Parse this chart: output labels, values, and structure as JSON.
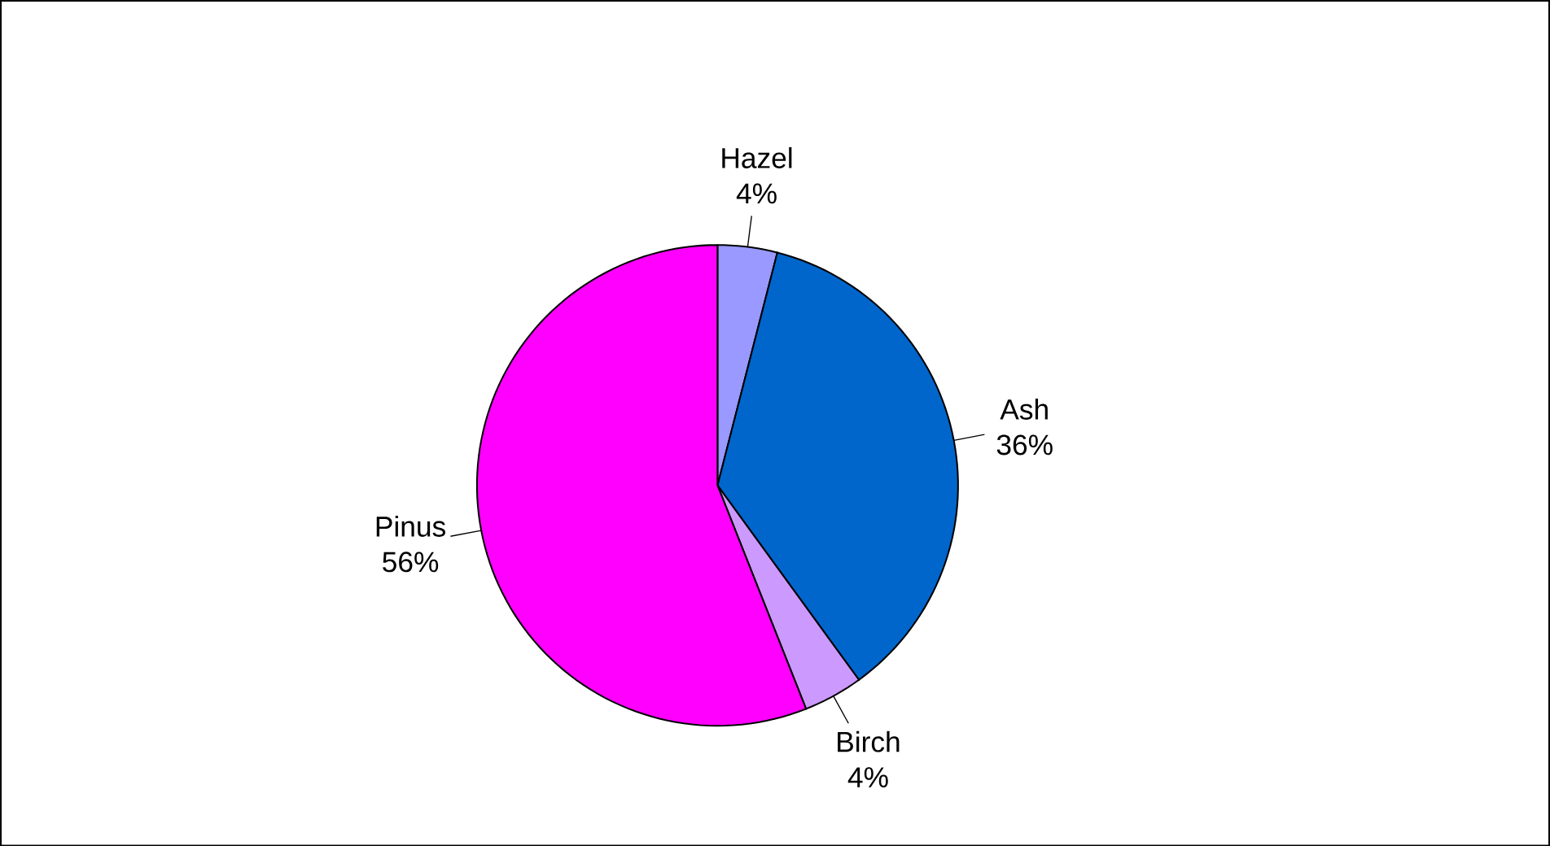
{
  "chart_data": {
    "type": "pie",
    "categories": [
      "Hazel",
      "Ash",
      "Birch",
      "Pinus"
    ],
    "values": [
      4,
      36,
      4,
      56
    ],
    "value_labels": [
      "4%",
      "36%",
      "4%",
      "56%"
    ],
    "colors": [
      "#9999ff",
      "#0066cc",
      "#cc99ff",
      "#ff00ff"
    ]
  }
}
